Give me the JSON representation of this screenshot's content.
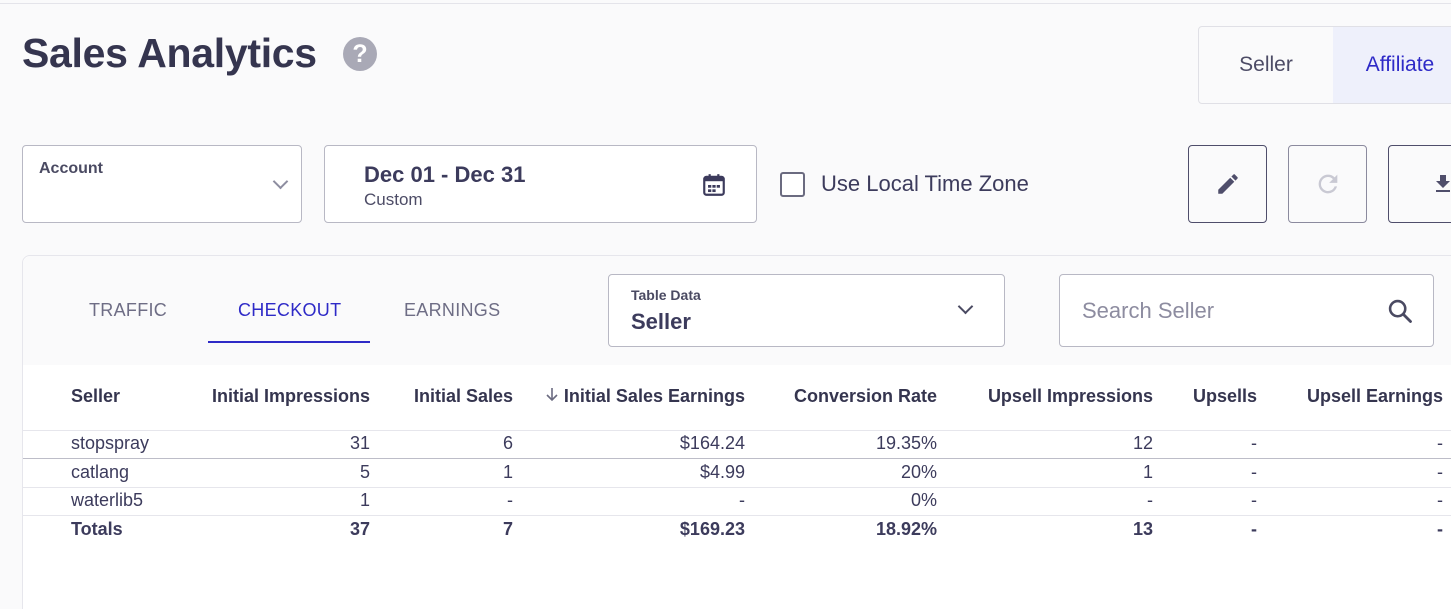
{
  "header": {
    "title": "Sales Analytics"
  },
  "role_toggle": {
    "options": [
      "Seller",
      "Affiliate"
    ],
    "active": "Affiliate"
  },
  "filters": {
    "account_label": "Account",
    "date_range": "Dec 01 - Dec 31",
    "date_mode": "Custom",
    "local_tz_label": "Use Local Time Zone",
    "local_tz_checked": false
  },
  "tabs": [
    "TRAFFIC",
    "CHECKOUT",
    "EARNINGS"
  ],
  "active_tab": "CHECKOUT",
  "table_data_select": {
    "label": "Table Data",
    "value": "Seller"
  },
  "search": {
    "placeholder": "Search Seller",
    "value": ""
  },
  "table": {
    "sort_column": "Initial Sales Earnings",
    "sort_direction": "descending",
    "columns": [
      "Seller",
      "Initial Impressions",
      "Initial Sales",
      "Initial Sales Earnings",
      "Conversion Rate",
      "Upsell Impressions",
      "Upsells",
      "Upsell Earnings"
    ],
    "rows": [
      [
        "stopspray",
        "31",
        "6",
        "$164.24",
        "19.35%",
        "12",
        "-",
        "-"
      ],
      [
        "catlang",
        "5",
        "1",
        "$4.99",
        "20%",
        "1",
        "-",
        "-"
      ],
      [
        "waterlib5",
        "1",
        "-",
        "-",
        "0%",
        "-",
        "-",
        "-"
      ]
    ],
    "totals": [
      "Totals",
      "37",
      "7",
      "$169.23",
      "18.92%",
      "13",
      "-",
      "-"
    ]
  },
  "icons": {
    "help": "help-icon",
    "calendar": "calendar-icon",
    "edit": "pencil-icon",
    "refresh": "refresh-icon",
    "download": "download-icon",
    "search": "search-icon",
    "sort": "arrow-down-icon"
  },
  "colors": {
    "accent": "#2e2ac7",
    "text": "#3c3b5c",
    "active_tab_bg": "#eef0fb"
  }
}
